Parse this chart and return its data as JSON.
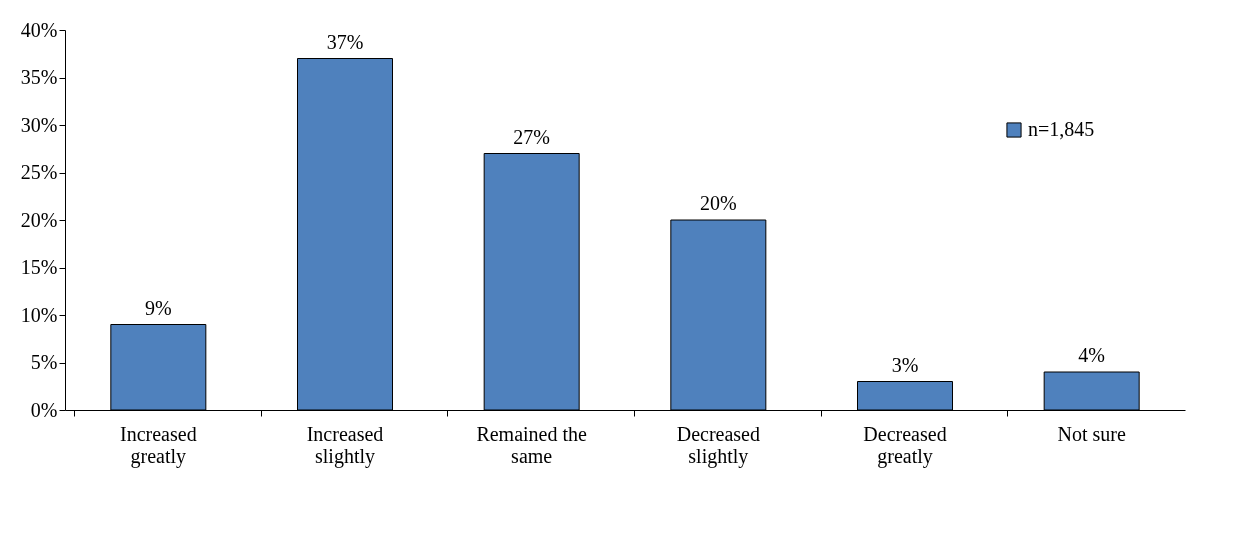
{
  "chart_data": {
    "type": "bar",
    "categories": [
      "Increased greatly",
      "Increased slightly",
      "Remained the same",
      "Decreased slightly",
      "Decreased greatly",
      "Not sure"
    ],
    "series": [
      {
        "name": "n=1,845",
        "color": "#4f81bd",
        "values": [
          9,
          37,
          27,
          20,
          3,
          4
        ],
        "value_labels": [
          "9%",
          "37%",
          "27%",
          "20%",
          "3%",
          "4%"
        ]
      }
    ],
    "ylim": [
      0,
      40
    ],
    "yticks": [
      {
        "value": 0,
        "label": "0%"
      },
      {
        "value": 5,
        "label": "5%"
      },
      {
        "value": 10,
        "label": "10%"
      },
      {
        "value": 15,
        "label": "15%"
      },
      {
        "value": 20,
        "label": "20%"
      },
      {
        "value": 25,
        "label": "25%"
      },
      {
        "value": 30,
        "label": "30%"
      },
      {
        "value": 35,
        "label": "35%"
      },
      {
        "value": 40,
        "label": "40%"
      }
    ],
    "grid": false,
    "legend": "top right"
  }
}
